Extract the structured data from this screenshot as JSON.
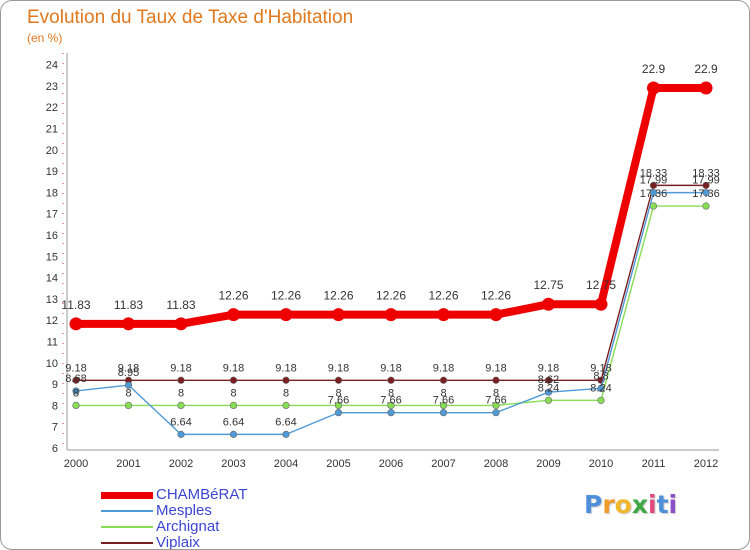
{
  "chart_data": {
    "type": "line",
    "title": "Evolution du Taux de Taxe d'Habitation",
    "subtitle": "(en %)",
    "xlabel": "",
    "ylabel": "",
    "ylim": [
      6,
      24
    ],
    "yticks": [
      "6",
      "7",
      "8",
      "9",
      "10",
      "11",
      "12",
      "13",
      "14",
      "15",
      "16",
      "17",
      "18",
      "19",
      "20",
      "21",
      "22",
      "23",
      "24"
    ],
    "categories": [
      "2000",
      "2001",
      "2002",
      "2003",
      "2004",
      "2005",
      "2006",
      "2007",
      "2008",
      "2009",
      "2010",
      "2011",
      "2012"
    ],
    "grid": false,
    "legend_position": "bottom-left",
    "series": [
      {
        "name": "Viplaix",
        "color": "#7a1e22",
        "values": [
          9.18,
          9.18,
          9.18,
          9.18,
          9.18,
          9.18,
          9.18,
          9.18,
          9.18,
          9.18,
          9.18,
          18.33,
          18.33
        ],
        "labels": [
          "9.18",
          "9.18",
          "9.18",
          "9.18",
          "9.18",
          "9.18",
          "9.18",
          "9.18",
          "9.18",
          "9.18",
          "9.18",
          "18.33",
          "18.33"
        ]
      },
      {
        "name": "Archignat",
        "color": "#88dd55",
        "values": [
          8,
          8,
          8,
          8,
          8,
          8,
          8,
          8,
          8,
          8.24,
          8.24,
          17.36,
          17.36
        ],
        "labels": [
          "8",
          "8",
          "8",
          "8",
          "8",
          "8",
          "8",
          "8",
          "8",
          "8.24",
          "8.24",
          "17.36",
          "17.36"
        ]
      },
      {
        "name": "Mesples",
        "color": "#4f9ad6",
        "values": [
          8.68,
          8.95,
          6.64,
          6.64,
          6.64,
          7.66,
          7.66,
          7.66,
          7.66,
          8.62,
          8.8,
          17.99,
          17.99
        ],
        "labels": [
          "8.68",
          "8.95",
          "6.64",
          "6.64",
          "6.64",
          "7.66",
          "7.66",
          "7.66",
          "7.66",
          "8.62",
          "8.8",
          "17.99",
          "17.99"
        ]
      },
      {
        "name": "CHAMBéRAT",
        "color": "#ee0000",
        "values": [
          11.83,
          11.83,
          11.83,
          12.26,
          12.26,
          12.26,
          12.26,
          12.26,
          12.26,
          12.75,
          12.75,
          22.9,
          22.9
        ],
        "labels": [
          "11.83",
          "11.83",
          "11.83",
          "12.26",
          "12.26",
          "12.26",
          "12.26",
          "12.26",
          "12.26",
          "12.75",
          "12.75",
          "22.9",
          "22.9"
        ]
      }
    ]
  },
  "legend": [
    {
      "label": "CHAMBéRAT",
      "color": "#ee0000",
      "thickness": "thick"
    },
    {
      "label": "Mesples",
      "color": "#4f9ad6",
      "thickness": "thin"
    },
    {
      "label": "Archignat",
      "color": "#88dd55",
      "thickness": "thin"
    },
    {
      "label": "Viplaix",
      "color": "#7a1e22",
      "thickness": "thin"
    }
  ],
  "logo": {
    "letters": [
      "P",
      "r",
      "o",
      "x",
      "i",
      "t",
      "i"
    ],
    "colors": [
      "#4d8fd8",
      "#f09a2a",
      "#f0b82a",
      "#3fa845",
      "#e04a7a",
      "#4d8fd8",
      "#8c4fc8"
    ]
  }
}
